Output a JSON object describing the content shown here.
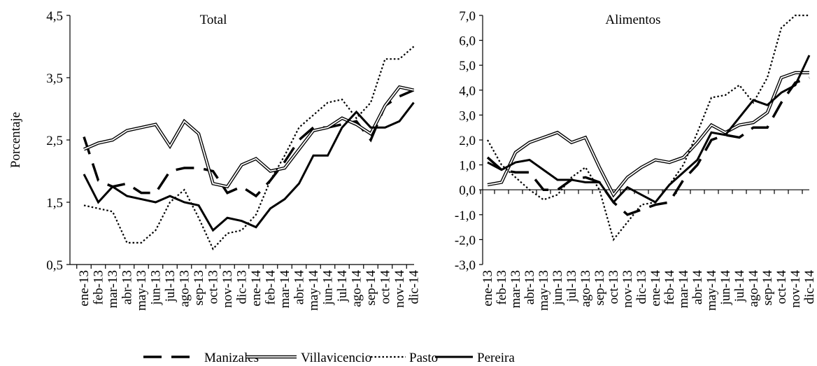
{
  "chart_data": [
    {
      "type": "line",
      "title": "Total",
      "y_label": "Porcentaje",
      "categories": [
        "ene-13",
        "feb-13",
        "mar-13",
        "abr-13",
        "may-13",
        "jun-13",
        "jul-13",
        "ago-13",
        "sep-13",
        "oct-13",
        "nov-13",
        "dic-13",
        "ene-14",
        "feb-14",
        "mar-14",
        "abr-14",
        "may-14",
        "jun-14",
        "jul-14",
        "ago-14",
        "sep-14",
        "oct-14",
        "nov-14",
        "dic-14"
      ],
      "ylim": [
        0.5,
        4.5
      ],
      "yticks": [
        {
          "value": 0.5,
          "label": "0,5"
        },
        {
          "value": 1.5,
          "label": "1,5"
        },
        {
          "value": 2.5,
          "label": "2,5"
        },
        {
          "value": 3.5,
          "label": "3,5"
        },
        {
          "value": 4.5,
          "label": "4,5"
        }
      ],
      "series": [
        {
          "name": "Manizales",
          "color": "#000000",
          "style": "dashed",
          "values": [
            2.55,
            1.85,
            1.75,
            1.8,
            1.65,
            1.65,
            2.0,
            2.05,
            2.05,
            2.0,
            1.65,
            1.75,
            1.6,
            1.85,
            2.15,
            2.5,
            2.7,
            2.7,
            2.75,
            2.8,
            2.5,
            3.05,
            3.2,
            3.3
          ]
        },
        {
          "name": "Villavicencio",
          "color": "#000000",
          "style": "double",
          "values": [
            2.35,
            2.45,
            2.5,
            2.65,
            2.7,
            2.75,
            2.4,
            2.8,
            2.6,
            1.8,
            1.75,
            2.1,
            2.2,
            2.0,
            2.05,
            2.35,
            2.65,
            2.7,
            2.85,
            2.75,
            2.6,
            3.05,
            3.35,
            3.3
          ]
        },
        {
          "name": "Pasto",
          "color": "#000000",
          "style": "dotted",
          "values": [
            1.45,
            1.4,
            1.35,
            0.85,
            0.85,
            1.05,
            1.5,
            1.7,
            1.25,
            0.75,
            1.0,
            1.05,
            1.3,
            1.85,
            2.25,
            2.7,
            2.9,
            3.1,
            3.15,
            2.85,
            3.1,
            3.8,
            3.8,
            4.0
          ]
        },
        {
          "name": "Pereira",
          "color": "#000000",
          "style": "solid",
          "values": [
            1.95,
            1.5,
            1.75,
            1.6,
            1.55,
            1.5,
            1.6,
            1.5,
            1.45,
            1.05,
            1.25,
            1.2,
            1.1,
            1.4,
            1.55,
            1.8,
            2.25,
            2.25,
            2.7,
            2.95,
            2.7,
            2.7,
            2.8,
            3.1
          ]
        }
      ]
    },
    {
      "type": "line",
      "title": "Alimentos",
      "categories": [
        "ene-13",
        "feb-13",
        "mar-13",
        "abr-13",
        "may-13",
        "jun-13",
        "jul-13",
        "ago-13",
        "sep-13",
        "oct-13",
        "nov-13",
        "dic-13",
        "ene-14",
        "feb-14",
        "mar-14",
        "abr-14",
        "may-14",
        "jun-14",
        "jul-14",
        "ago-14",
        "sep-14",
        "oct-14",
        "nov-14",
        "dic-14"
      ],
      "ylim": [
        -3.0,
        7.0
      ],
      "yticks": [
        {
          "value": -3.0,
          "label": "-3,0"
        },
        {
          "value": -2.0,
          "label": "-2,0"
        },
        {
          "value": -1.0,
          "label": "-1,0"
        },
        {
          "value": 0.0,
          "label": "0,0"
        },
        {
          "value": 1.0,
          "label": "1,0"
        },
        {
          "value": 2.0,
          "label": "2,0"
        },
        {
          "value": 3.0,
          "label": "3,0"
        },
        {
          "value": 4.0,
          "label": "4,0"
        },
        {
          "value": 5.0,
          "label": "5,0"
        },
        {
          "value": 6.0,
          "label": "6,0"
        },
        {
          "value": 7.0,
          "label": "7,0"
        }
      ],
      "series": [
        {
          "name": "Manizales",
          "color": "#000000",
          "style": "dashed",
          "values": [
            1.3,
            0.8,
            0.7,
            0.7,
            0.0,
            0.0,
            0.4,
            0.5,
            0.3,
            -0.5,
            -1.0,
            -0.8,
            -0.6,
            -0.5,
            0.4,
            1.0,
            2.0,
            2.2,
            2.1,
            2.5,
            2.5,
            3.5,
            4.3,
            4.5
          ]
        },
        {
          "name": "Villavicencio",
          "color": "#000000",
          "style": "double",
          "values": [
            0.2,
            0.3,
            1.5,
            1.9,
            2.1,
            2.3,
            1.9,
            2.1,
            0.9,
            -0.2,
            0.5,
            0.9,
            1.2,
            1.1,
            1.3,
            1.9,
            2.6,
            2.3,
            2.6,
            2.7,
            3.1,
            4.5,
            4.7,
            4.7
          ]
        },
        {
          "name": "Pasto",
          "color": "#000000",
          "style": "dotted",
          "values": [
            2.0,
            1.0,
            0.5,
            0.0,
            -0.4,
            -0.2,
            0.5,
            0.9,
            0.0,
            -2.0,
            -1.3,
            -0.6,
            -0.5,
            0.2,
            1.0,
            2.3,
            3.7,
            3.8,
            4.2,
            3.5,
            4.5,
            6.5,
            7.0,
            7.0
          ]
        },
        {
          "name": "Pereira",
          "color": "#000000",
          "style": "solid",
          "values": [
            1.1,
            0.8,
            1.1,
            1.2,
            0.8,
            0.4,
            0.4,
            0.3,
            0.3,
            -0.5,
            0.1,
            -0.2,
            -0.5,
            0.2,
            0.7,
            1.2,
            2.3,
            2.2,
            2.9,
            3.6,
            3.4,
            3.9,
            4.2,
            5.4
          ]
        }
      ]
    }
  ]
}
